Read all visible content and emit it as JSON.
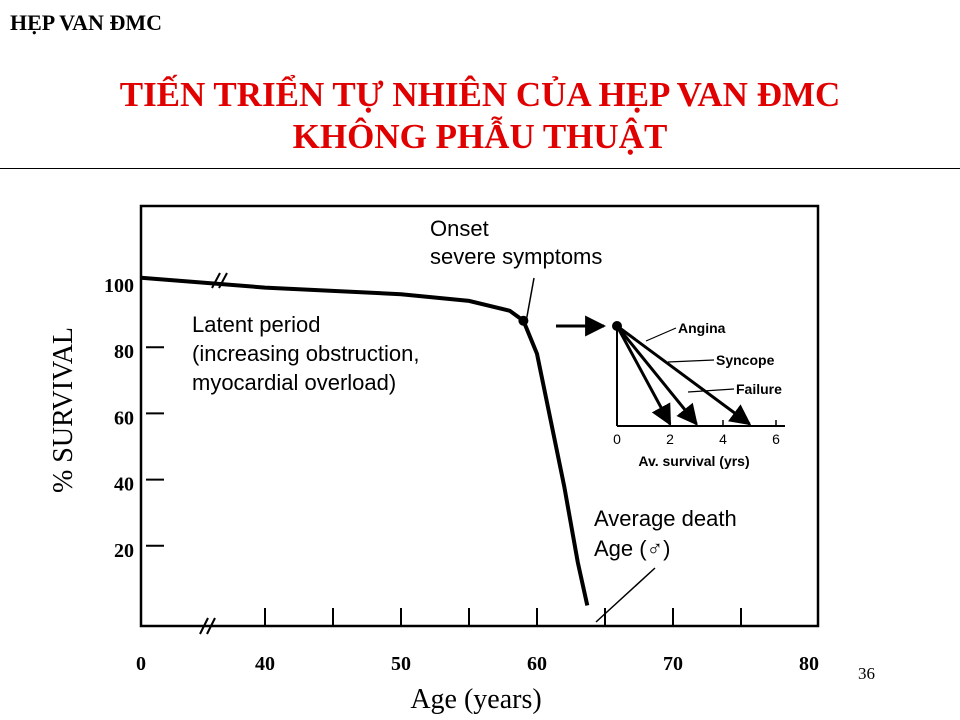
{
  "slide": {
    "header": "HẸP VAN ĐMC",
    "title_line1": "TIẾN TRIỂN TỰ NHIÊN CỦA HẸP VAN ĐMC",
    "title_line2": "KHÔNG PHẪU  THUẬT",
    "page_number": "36"
  },
  "chart_data": [
    {
      "type": "line",
      "xlabel": "Age (years)",
      "ylabel": "% SURVIVAL",
      "x_ticks": [
        "0",
        "40",
        "50",
        "60",
        "70",
        "80"
      ],
      "y_ticks": [
        "100",
        "80",
        "60",
        "40",
        "20"
      ],
      "x_axis_break": true,
      "series": [
        {
          "x": [
            0,
            40,
            50,
            55,
            58,
            59,
            60,
            61,
            62,
            63,
            63.7
          ],
          "y": [
            101,
            98,
            96,
            94,
            91,
            88,
            78,
            58,
            38,
            15,
            2
          ]
        }
      ],
      "annotations": {
        "onset_line1": "Onset",
        "onset_line2": "severe symptoms",
        "latent_line1": "Latent period",
        "latent_line2": "(increasing obstruction,",
        "latent_line3": "myocardial overload)",
        "death_line1": "Average death",
        "death_line2": "Age (♂)"
      },
      "onset_point": {
        "x": 59,
        "y": 88
      }
    },
    {
      "type": "line",
      "xlabel": "Av. survival (yrs)",
      "x_ticks": [
        "0",
        "2",
        "4",
        "6"
      ],
      "series": [
        {
          "name": "Angina",
          "x_end": 5
        },
        {
          "name": "Syncope",
          "x_end": 3
        },
        {
          "name": "Failure",
          "x_end": 2
        }
      ]
    }
  ]
}
